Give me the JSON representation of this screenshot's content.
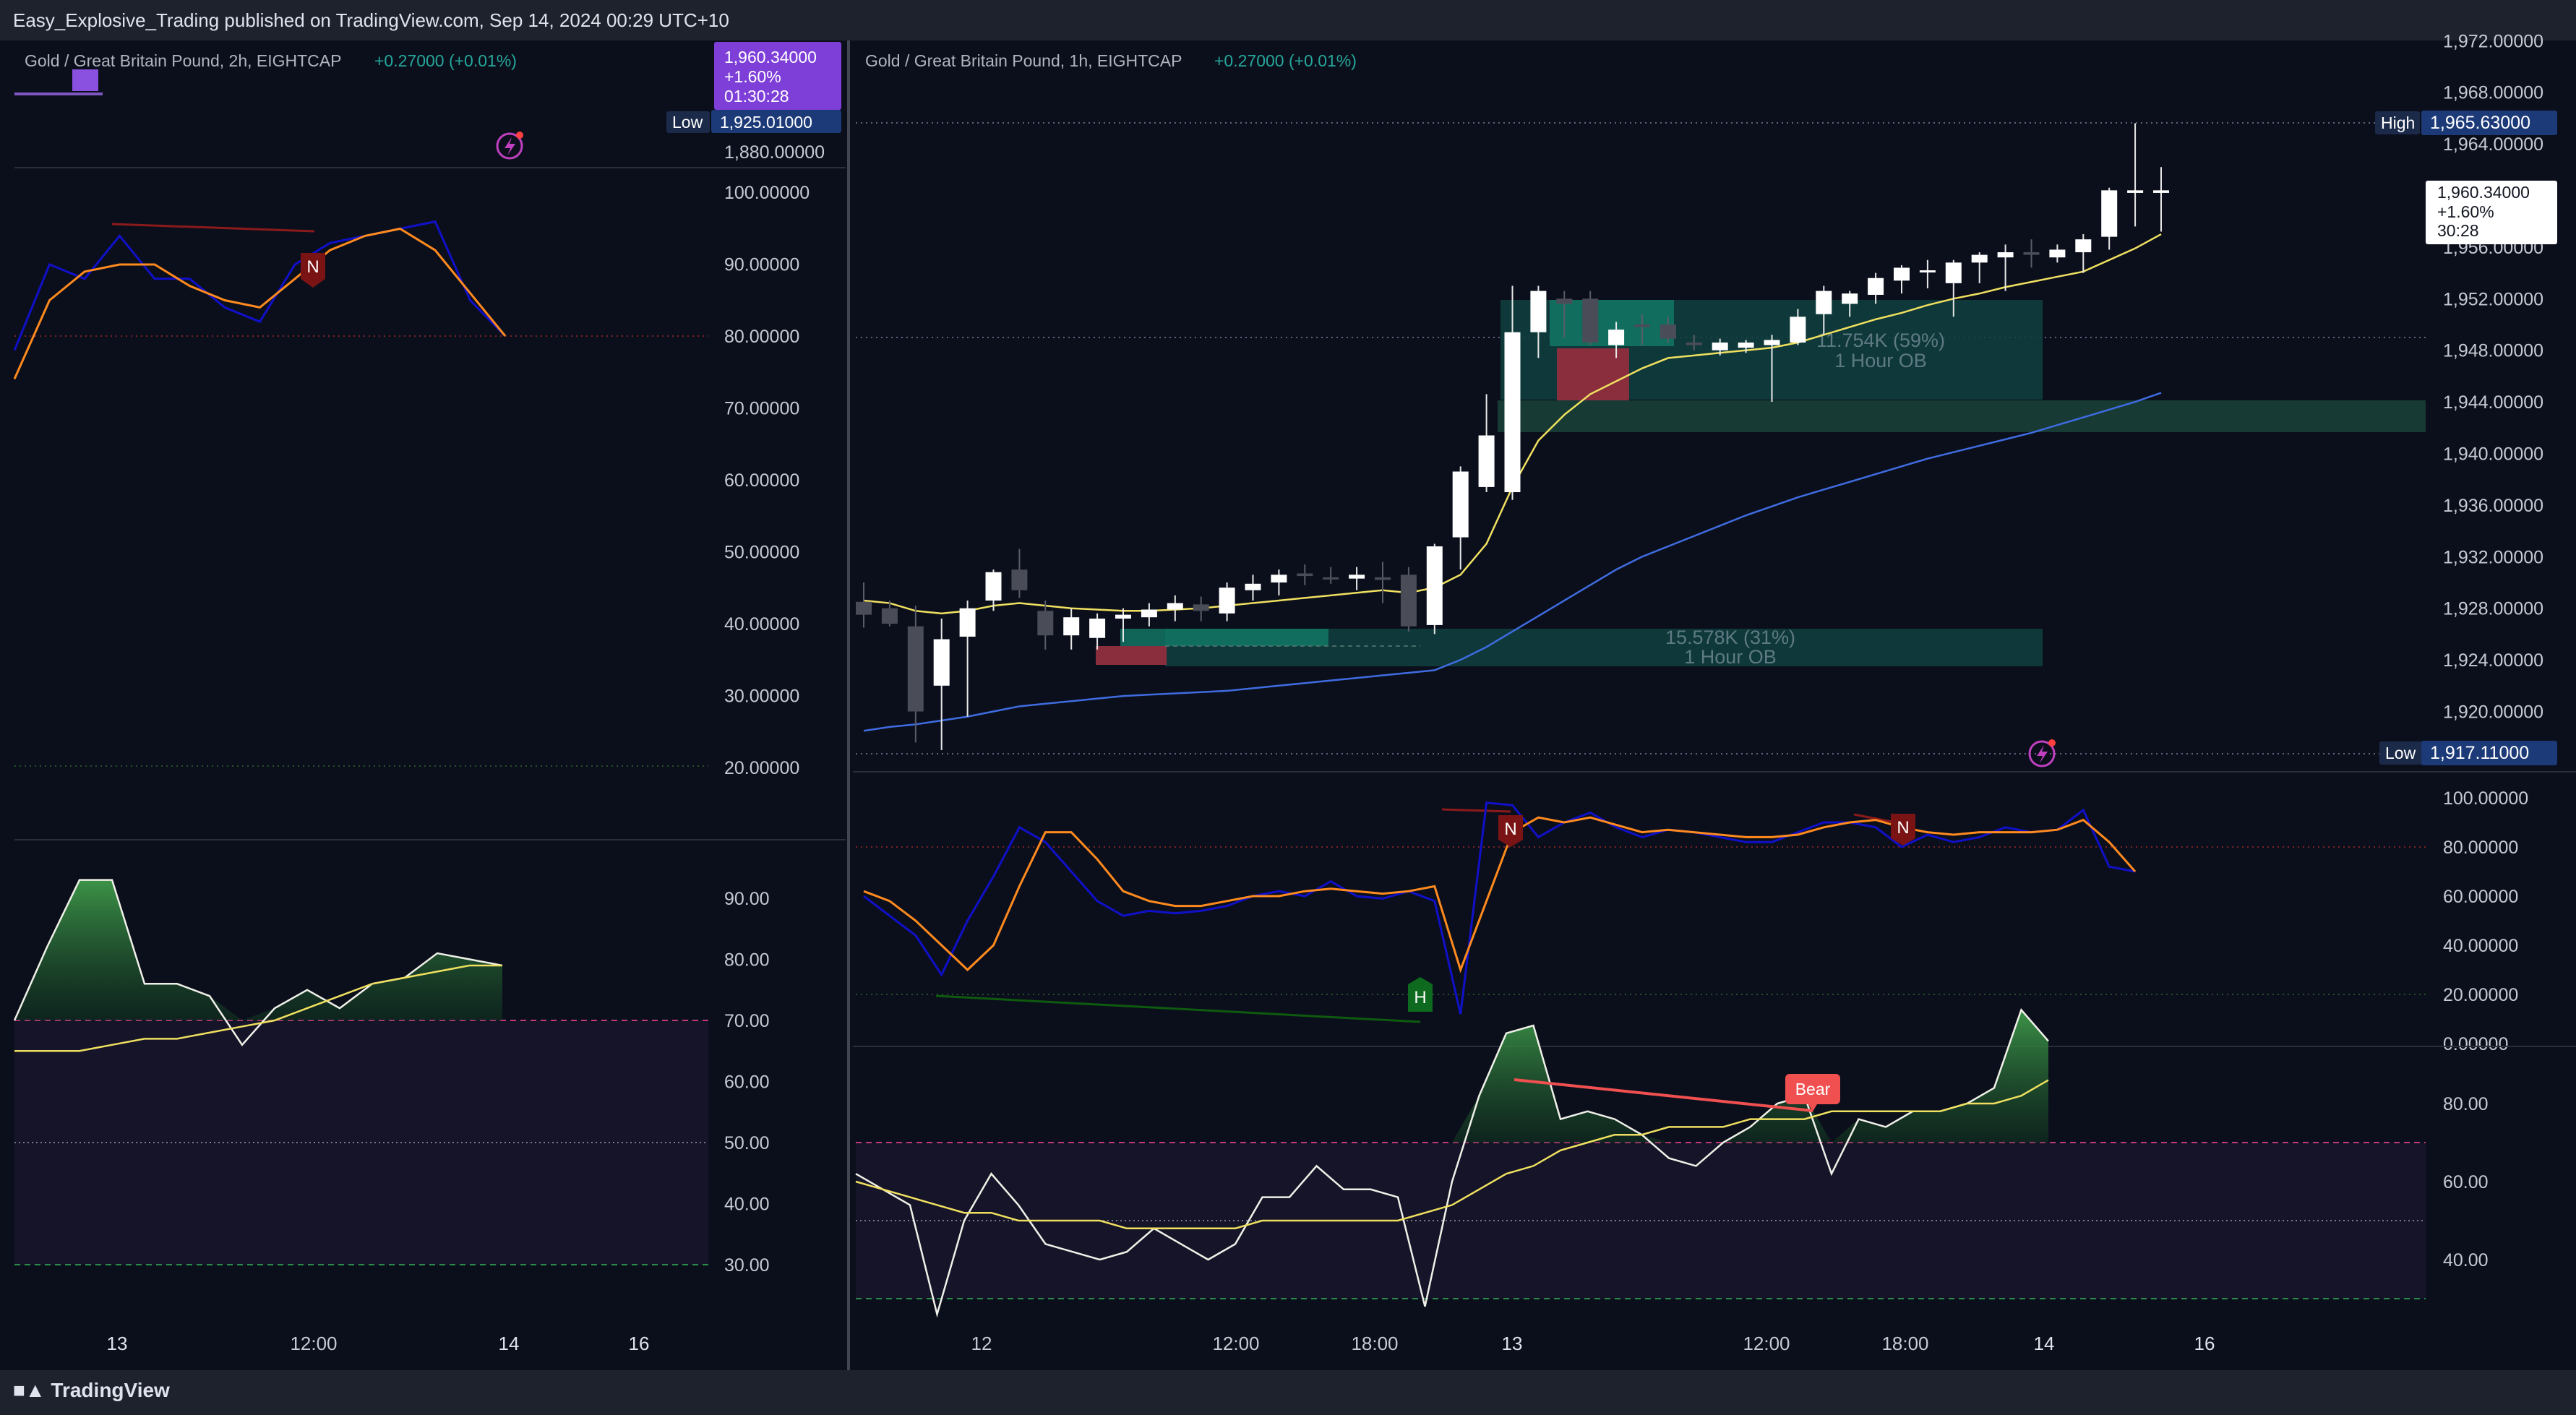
{
  "header": {
    "published_text": "Easy_Explosive_Trading published on TradingView.com, Sep 14, 2024 00:29 UTC+10"
  },
  "footer": {
    "brand": "TradingView",
    "brand_icon": "tradingview-logo-icon"
  },
  "colors": {
    "background": "#0b0f1c",
    "bull": "#ffffff",
    "bear": "#4a4d57",
    "ema_fast": "#f0e060",
    "ema_slow": "#3f6ce0",
    "rsi_fast": "#1010c8",
    "rsi_slow": "#ff8a1e",
    "ob_bull": "#0f4a45",
    "ob_bear": "#8a2e3e",
    "divergence_bear": "#8b1a1a",
    "divergence_bull": "#0e5a0e",
    "change_text": "#26a69a",
    "bear_label": "#f05050"
  },
  "left_pane": {
    "title": "Gold / Great Britain Pound, 2h, EIGHTCAP",
    "change": "+0.27000 (+0.01%)",
    "price_tag": {
      "price": "1,960.34000",
      "pct": "+1.60%",
      "countdown": "01:30:28"
    },
    "low_label": "Low",
    "low_value": "1,925.01000",
    "price_tick": "1,880.00000",
    "rsi_ticks": [
      "100.00000",
      "90.00000",
      "80.00000",
      "70.00000",
      "60.00000",
      "50.00000",
      "40.00000",
      "30.00000",
      "20.00000"
    ],
    "osc_ticks": [
      "90.00",
      "80.00",
      "70.00",
      "60.00",
      "50.00",
      "40.00",
      "30.00"
    ],
    "time_ticks": [
      "13",
      "12:00",
      "14",
      "16"
    ],
    "markers": [
      {
        "text": "N"
      }
    ]
  },
  "right_pane": {
    "title": "Gold / Great Britain Pound, 1h, EIGHTCAP",
    "change": "+0.27000 (+0.01%)",
    "high_label": "High",
    "high_value": "1,965.63000",
    "low_label": "Low",
    "low_value": "1,917.11000",
    "price_tag": {
      "price": "1,960.34000",
      "pct": "+1.60%",
      "countdown": "30:28"
    },
    "price_ticks": [
      "1,972.00000",
      "1,968.00000",
      "1,964.00000",
      "1,956.00000",
      "1,952.00000",
      "1,948.00000",
      "1,944.00000",
      "1,940.00000",
      "1,936.00000",
      "1,932.00000",
      "1,928.00000",
      "1,924.00000",
      "1,920.00000"
    ],
    "rsi_ticks": [
      "100.00000",
      "80.00000",
      "60.00000",
      "40.00000",
      "20.00000",
      "0.00000"
    ],
    "osc_ticks": [
      "80.00",
      "60.00",
      "40.00"
    ],
    "time_ticks": [
      "12",
      "12:00",
      "18:00",
      "13",
      "12:00",
      "18:00",
      "14",
      "16"
    ],
    "order_blocks": [
      {
        "volume": "11.754K (59%)",
        "label": "1 Hour OB"
      },
      {
        "volume": "15.578K (31%)",
        "label": "1 Hour OB"
      }
    ],
    "markers": [
      {
        "text": "N"
      },
      {
        "text": "N"
      },
      {
        "text": "H"
      },
      {
        "text": "Bear"
      }
    ]
  },
  "chart_data": {
    "type": "candlestick",
    "symbol": "Gold / Great Britain Pound",
    "timeframe": "1h",
    "broker": "EIGHTCAP",
    "ylim": [
      1916,
      1972
    ],
    "candles": [
      {
        "o": 1928.5,
        "h": 1930.0,
        "l": 1926.5,
        "c": 1927.5
      },
      {
        "o": 1928.0,
        "h": 1928.6,
        "l": 1926.6,
        "c": 1926.8
      },
      {
        "o": 1926.6,
        "h": 1928.2,
        "l": 1917.6,
        "c": 1920.0
      },
      {
        "o": 1922.0,
        "h": 1927.2,
        "l": 1917.0,
        "c": 1925.6
      },
      {
        "o": 1925.8,
        "h": 1928.6,
        "l": 1919.6,
        "c": 1928.0
      },
      {
        "o": 1928.6,
        "h": 1931.0,
        "l": 1927.8,
        "c": 1930.8
      },
      {
        "o": 1931.0,
        "h": 1932.6,
        "l": 1928.8,
        "c": 1929.4
      },
      {
        "o": 1927.8,
        "h": 1928.6,
        "l": 1924.8,
        "c": 1925.9
      },
      {
        "o": 1925.9,
        "h": 1928.0,
        "l": 1924.8,
        "c": 1927.3
      },
      {
        "o": 1925.7,
        "h": 1927.6,
        "l": 1924.8,
        "c": 1927.2
      },
      {
        "o": 1927.2,
        "h": 1928.0,
        "l": 1925.4,
        "c": 1927.5
      },
      {
        "o": 1927.3,
        "h": 1928.4,
        "l": 1926.6,
        "c": 1927.9
      },
      {
        "o": 1927.9,
        "h": 1929.0,
        "l": 1927.0,
        "c": 1928.4
      },
      {
        "o": 1928.3,
        "h": 1928.9,
        "l": 1927.0,
        "c": 1927.8
      },
      {
        "o": 1927.6,
        "h": 1930.0,
        "l": 1927.0,
        "c": 1929.6
      },
      {
        "o": 1929.4,
        "h": 1930.6,
        "l": 1928.6,
        "c": 1929.9
      },
      {
        "o": 1930.0,
        "h": 1931.0,
        "l": 1929.0,
        "c": 1930.6
      },
      {
        "o": 1930.7,
        "h": 1931.4,
        "l": 1929.8,
        "c": 1930.5
      },
      {
        "o": 1930.4,
        "h": 1931.2,
        "l": 1929.9,
        "c": 1930.3
      },
      {
        "o": 1930.3,
        "h": 1931.2,
        "l": 1929.4,
        "c": 1930.6
      },
      {
        "o": 1930.4,
        "h": 1931.6,
        "l": 1928.4,
        "c": 1930.2
      },
      {
        "o": 1930.6,
        "h": 1931.2,
        "l": 1926.2,
        "c": 1926.6
      },
      {
        "o": 1926.7,
        "h": 1933.0,
        "l": 1926.0,
        "c": 1932.8
      },
      {
        "o": 1933.5,
        "h": 1939.0,
        "l": 1931.0,
        "c": 1938.6
      },
      {
        "o": 1937.4,
        "h": 1944.6,
        "l": 1937.0,
        "c": 1941.4
      },
      {
        "o": 1937.0,
        "h": 1953.0,
        "l": 1936.4,
        "c": 1949.4
      },
      {
        "o": 1949.4,
        "h": 1953.0,
        "l": 1947.4,
        "c": 1952.6
      },
      {
        "o": 1952.0,
        "h": 1952.6,
        "l": 1949.0,
        "c": 1951.6
      },
      {
        "o": 1952.0,
        "h": 1952.6,
        "l": 1948.4,
        "c": 1948.6
      },
      {
        "o": 1948.4,
        "h": 1950.2,
        "l": 1947.4,
        "c": 1949.6
      },
      {
        "o": 1950.0,
        "h": 1950.8,
        "l": 1948.4,
        "c": 1949.8
      },
      {
        "o": 1950.0,
        "h": 1950.6,
        "l": 1948.6,
        "c": 1948.9
      },
      {
        "o": 1948.6,
        "h": 1949.2,
        "l": 1948.0,
        "c": 1948.4
      },
      {
        "o": 1948.0,
        "h": 1948.9,
        "l": 1947.6,
        "c": 1948.6
      },
      {
        "o": 1948.2,
        "h": 1948.8,
        "l": 1947.8,
        "c": 1948.6
      },
      {
        "o": 1948.4,
        "h": 1949.2,
        "l": 1944.0,
        "c": 1948.8
      },
      {
        "o": 1948.6,
        "h": 1951.2,
        "l": 1948.4,
        "c": 1950.6
      },
      {
        "o": 1950.8,
        "h": 1953.0,
        "l": 1949.2,
        "c": 1952.6
      },
      {
        "o": 1951.6,
        "h": 1952.6,
        "l": 1950.6,
        "c": 1952.4
      },
      {
        "o": 1952.3,
        "h": 1954.0,
        "l": 1951.6,
        "c": 1953.6
      },
      {
        "o": 1953.4,
        "h": 1954.6,
        "l": 1952.4,
        "c": 1954.4
      },
      {
        "o": 1954.2,
        "h": 1955.0,
        "l": 1952.8,
        "c": 1954.2
      },
      {
        "o": 1953.2,
        "h": 1955.0,
        "l": 1950.6,
        "c": 1954.8
      },
      {
        "o": 1954.8,
        "h": 1955.6,
        "l": 1953.2,
        "c": 1955.4
      },
      {
        "o": 1955.2,
        "h": 1956.2,
        "l": 1952.6,
        "c": 1955.6
      },
      {
        "o": 1955.6,
        "h": 1956.6,
        "l": 1954.4,
        "c": 1955.4
      },
      {
        "o": 1955.2,
        "h": 1956.2,
        "l": 1954.8,
        "c": 1955.8
      },
      {
        "o": 1955.6,
        "h": 1957.0,
        "l": 1954.0,
        "c": 1956.6
      },
      {
        "o": 1956.8,
        "h": 1960.6,
        "l": 1955.8,
        "c": 1960.4
      },
      {
        "o": 1960.2,
        "h": 1965.6,
        "l": 1957.6,
        "c": 1960.4
      },
      {
        "o": 1960.2,
        "h": 1962.2,
        "l": 1957.2,
        "c": 1960.4
      }
    ],
    "ema_fast": [
      1928.6,
      1928.4,
      1927.8,
      1927.6,
      1927.8,
      1928.2,
      1928.4,
      1928.2,
      1928.0,
      1927.9,
      1927.8,
      1927.8,
      1927.9,
      1928.0,
      1928.2,
      1928.4,
      1928.6,
      1928.8,
      1929.0,
      1929.2,
      1929.4,
      1929.2,
      1929.6,
      1930.6,
      1933.0,
      1937.4,
      1941.0,
      1943.0,
      1944.6,
      1945.6,
      1946.6,
      1947.4,
      1947.6,
      1947.8,
      1948.0,
      1948.2,
      1948.6,
      1949.2,
      1949.8,
      1950.4,
      1950.9,
      1951.5,
      1952.0,
      1952.4,
      1952.9,
      1953.3,
      1953.7,
      1954.1,
      1955.0,
      1955.9,
      1957.0
    ],
    "ema_slow": [
      1918.5,
      1918.8,
      1919.0,
      1919.3,
      1919.6,
      1920.0,
      1920.4,
      1920.6,
      1920.8,
      1921.0,
      1921.2,
      1921.3,
      1921.4,
      1921.5,
      1921.6,
      1921.8,
      1922.0,
      1922.2,
      1922.4,
      1922.6,
      1922.8,
      1923.0,
      1923.2,
      1924.0,
      1925.0,
      1926.2,
      1927.4,
      1928.6,
      1929.8,
      1931.0,
      1932.0,
      1932.8,
      1933.6,
      1934.4,
      1935.2,
      1935.9,
      1936.6,
      1937.2,
      1937.8,
      1938.4,
      1939.0,
      1939.6,
      1940.1,
      1940.6,
      1941.1,
      1941.6,
      1942.2,
      1942.8,
      1943.4,
      1944.0,
      1944.7
    ],
    "rsi_fast": [
      60,
      52,
      44,
      28,
      50,
      68,
      88,
      82,
      70,
      58,
      52,
      54,
      53,
      54,
      56,
      60,
      62,
      60,
      66,
      60,
      59,
      62,
      58,
      12,
      98,
      97,
      84,
      90,
      94,
      88,
      84,
      87,
      86,
      84,
      82,
      82,
      86,
      90,
      90,
      88,
      80,
      85,
      82,
      84,
      88,
      86,
      87,
      95,
      72,
      70
    ],
    "rsi_slow": [
      62,
      58,
      50,
      40,
      30,
      40,
      64,
      86,
      86,
      75,
      62,
      58,
      56,
      56,
      58,
      60,
      60,
      62,
      63,
      62,
      61,
      62,
      64,
      30,
      58,
      86,
      92,
      90,
      92,
      89,
      86,
      87,
      86,
      85,
      84,
      84,
      85,
      88,
      90,
      91,
      88,
      86,
      85,
      86,
      86,
      86,
      87,
      91,
      82,
      70
    ],
    "oscillator": [
      66,
      64,
      62,
      48,
      60,
      66,
      62,
      57,
      56,
      55,
      56,
      59,
      57,
      55,
      57,
      63,
      63,
      67,
      64,
      64,
      63,
      49,
      65,
      76,
      84,
      85,
      73,
      74,
      73,
      71,
      68,
      67,
      70,
      72,
      75,
      76,
      66,
      73,
      72,
      74,
      74,
      75,
      77,
      87,
      83
    ],
    "oscillator_signal": [
      65,
      64,
      63,
      62,
      61,
      61,
      60,
      60,
      60,
      60,
      59,
      59,
      59,
      59,
      59,
      60,
      60,
      60,
      60,
      60,
      60,
      61,
      62,
      64,
      66,
      67,
      69,
      70,
      71,
      71,
      72,
      72,
      72,
      73,
      73,
      73,
      74,
      74,
      74,
      74,
      74,
      75,
      75,
      76,
      78
    ],
    "left_rsi_fast": [
      78,
      90,
      88,
      94,
      88,
      88,
      84,
      82,
      90,
      93,
      94,
      95,
      96,
      85,
      80
    ],
    "left_rsi_slow": [
      74,
      85,
      89,
      90,
      90,
      87,
      85,
      84,
      88,
      92,
      94,
      95,
      92,
      86,
      80
    ],
    "left_osc": [
      70,
      82,
      93,
      93,
      76,
      76,
      74,
      66,
      72,
      75,
      72,
      76,
      77,
      81,
      80,
      79
    ],
    "left_osc_signal": [
      65,
      65,
      65,
      66,
      67,
      67,
      68,
      69,
      70,
      72,
      74,
      76,
      77,
      78,
      79,
      79
    ]
  }
}
